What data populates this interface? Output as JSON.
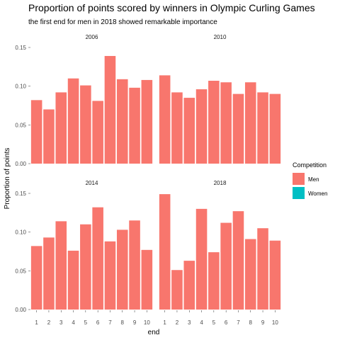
{
  "chart_data": {
    "type": "bar",
    "title": "Proportion of points scored by winners in Olympic Curling Games",
    "subtitle": "the first end for men in 2018 showed remarkable importance",
    "xlabel": "end",
    "ylabel": "Proportion of points",
    "ylim": [
      0,
      0.15
    ],
    "yticks": [
      "0.00",
      "0.05",
      "0.10",
      "0.15"
    ],
    "categories": [
      "1",
      "2",
      "3",
      "4",
      "5",
      "6",
      "7",
      "8",
      "9",
      "10"
    ],
    "grid": false,
    "legend": {
      "title": "Competition",
      "position": "right",
      "entries": [
        {
          "name": "Men",
          "color": "#F8766D"
        },
        {
          "name": "Women",
          "color": "#00BFC4"
        }
      ]
    },
    "panels": [
      {
        "label": "2006",
        "series": "Men",
        "values": [
          0.082,
          0.07,
          0.092,
          0.11,
          0.101,
          0.081,
          0.139,
          0.109,
          0.098,
          0.108
        ]
      },
      {
        "label": "2010",
        "series": "Men",
        "values": [
          0.114,
          0.092,
          0.085,
          0.096,
          0.107,
          0.105,
          0.09,
          0.105,
          0.092,
          0.09
        ]
      },
      {
        "label": "2014",
        "series": "Men",
        "values": [
          0.082,
          0.093,
          0.114,
          0.076,
          0.11,
          0.132,
          0.088,
          0.103,
          0.115,
          0.077
        ]
      },
      {
        "label": "2018",
        "series": "Men",
        "values": [
          0.149,
          0.051,
          0.063,
          0.13,
          0.074,
          0.112,
          0.127,
          0.091,
          0.105,
          0.089
        ]
      }
    ]
  }
}
